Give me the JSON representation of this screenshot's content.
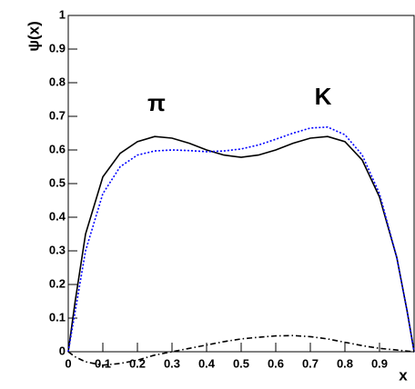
{
  "chart_data": {
    "type": "line",
    "x_label": "x",
    "y_label": "ψ(x)",
    "annotations": [
      "π",
      "K"
    ],
    "x": [
      0,
      0.02,
      0.05,
      0.1,
      0.15,
      0.2,
      0.25,
      0.3,
      0.35,
      0.4,
      0.45,
      0.5,
      0.55,
      0.6,
      0.65,
      0.7,
      0.75,
      0.8,
      0.85,
      0.9,
      0.95,
      0.98,
      1
    ],
    "series": [
      {
        "color": "#000000",
        "dash": "none",
        "values": [
          0,
          0.15,
          0.35,
          0.52,
          0.59,
          0.625,
          0.64,
          0.635,
          0.62,
          0.6,
          0.585,
          0.578,
          0.585,
          0.6,
          0.62,
          0.635,
          0.64,
          0.625,
          0.57,
          0.46,
          0.28,
          0.12,
          0
        ]
      },
      {
        "color": "#0000ff",
        "dash": "2 2",
        "values": [
          0,
          0.12,
          0.3,
          0.47,
          0.55,
          0.585,
          0.597,
          0.6,
          0.598,
          0.595,
          0.597,
          0.603,
          0.615,
          0.632,
          0.65,
          0.665,
          0.668,
          0.645,
          0.585,
          0.47,
          0.28,
          0.12,
          0
        ]
      },
      {
        "color": "#000000",
        "dash": "6 3 1.5 3",
        "values": [
          0,
          -0.015,
          -0.03,
          -0.04,
          -0.035,
          -0.025,
          -0.01,
          0,
          0.01,
          0.02,
          0.03,
          0.038,
          0.043,
          0.047,
          0.048,
          0.045,
          0.038,
          0.028,
          0.018,
          0.01,
          0.005,
          0.002,
          0
        ]
      }
    ],
    "xlim": [
      0,
      1
    ],
    "ylim": [
      0,
      1
    ],
    "xticks": [
      0,
      0.1,
      0.2,
      0.3,
      0.4,
      0.5,
      0.6,
      0.7,
      0.8,
      0.9
    ],
    "yticks": [
      0,
      0.1,
      0.2,
      0.3,
      0.4,
      0.5,
      0.6,
      0.7,
      0.8,
      0.9,
      1
    ]
  }
}
